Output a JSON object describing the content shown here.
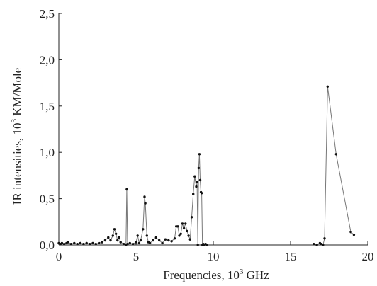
{
  "chart_data": {
    "type": "line",
    "xlabel": "Frequencies, 10",
    "xlabel_sup": "3",
    "xlabel_suffix": " GHz",
    "ylabel": "IR intensities, 10",
    "ylabel_sup": "3",
    "ylabel_suffix": " KM/Mole",
    "xlim": [
      0,
      20
    ],
    "ylim": [
      0,
      2.5
    ],
    "x_ticks": [
      0,
      5,
      10,
      15,
      20
    ],
    "x_tick_labels": [
      "0",
      "5",
      "10",
      "15",
      "20"
    ],
    "y_ticks": [
      0,
      0.5,
      1.0,
      1.5,
      2.0,
      2.5
    ],
    "y_tick_labels": [
      "0,0",
      "0,5",
      "1,0",
      "1,5",
      "2,0",
      "2,5"
    ],
    "grid": false,
    "series": [
      {
        "x": [
          0.0,
          0.1,
          0.2,
          0.35,
          0.5,
          0.6,
          0.8,
          1.0,
          1.2,
          1.4,
          1.6,
          1.8,
          2.0,
          2.2,
          2.4,
          2.6,
          2.8,
          3.0,
          3.2,
          3.35,
          3.5,
          3.6,
          3.7,
          3.8,
          3.9,
          4.0,
          4.2,
          4.35,
          4.4,
          4.45,
          4.6,
          4.8,
          5.0,
          5.1,
          5.2,
          5.3,
          5.45,
          5.55,
          5.6,
          5.7,
          5.8,
          5.9,
          6.1,
          6.3,
          6.5,
          6.7,
          6.9,
          7.1,
          7.3,
          7.5,
          7.6,
          7.7,
          7.8,
          7.9,
          8.0,
          8.1,
          8.2,
          8.3,
          8.4,
          8.5,
          8.6,
          8.7,
          8.8,
          8.9,
          8.95,
          9.0,
          9.05,
          9.1,
          9.15,
          9.2,
          9.25,
          9.3,
          9.35,
          9.4,
          9.5,
          9.6,
          16.5,
          16.7,
          16.9,
          17.0,
          17.1,
          17.2,
          17.4,
          17.95,
          18.9,
          19.1
        ],
        "values": [
          0.02,
          0.01,
          0.02,
          0.01,
          0.02,
          0.03,
          0.01,
          0.02,
          0.01,
          0.02,
          0.01,
          0.02,
          0.01,
          0.02,
          0.01,
          0.02,
          0.03,
          0.05,
          0.08,
          0.05,
          0.1,
          0.17,
          0.12,
          0.05,
          0.08,
          0.03,
          0.01,
          0.0,
          0.6,
          0.01,
          0.02,
          0.01,
          0.03,
          0.1,
          0.02,
          0.05,
          0.17,
          0.52,
          0.45,
          0.1,
          0.03,
          0.02,
          0.05,
          0.08,
          0.05,
          0.02,
          0.06,
          0.05,
          0.04,
          0.07,
          0.2,
          0.2,
          0.1,
          0.12,
          0.23,
          0.18,
          0.23,
          0.15,
          0.1,
          0.06,
          0.3,
          0.55,
          0.74,
          0.63,
          0.68,
          0.0,
          0.83,
          0.98,
          0.7,
          0.57,
          0.56,
          0.0,
          0.01,
          0.0,
          0.01,
          0.0,
          0.01,
          0.0,
          0.02,
          0.01,
          0.0,
          0.07,
          1.71,
          0.98,
          0.14,
          0.11
        ]
      }
    ]
  }
}
